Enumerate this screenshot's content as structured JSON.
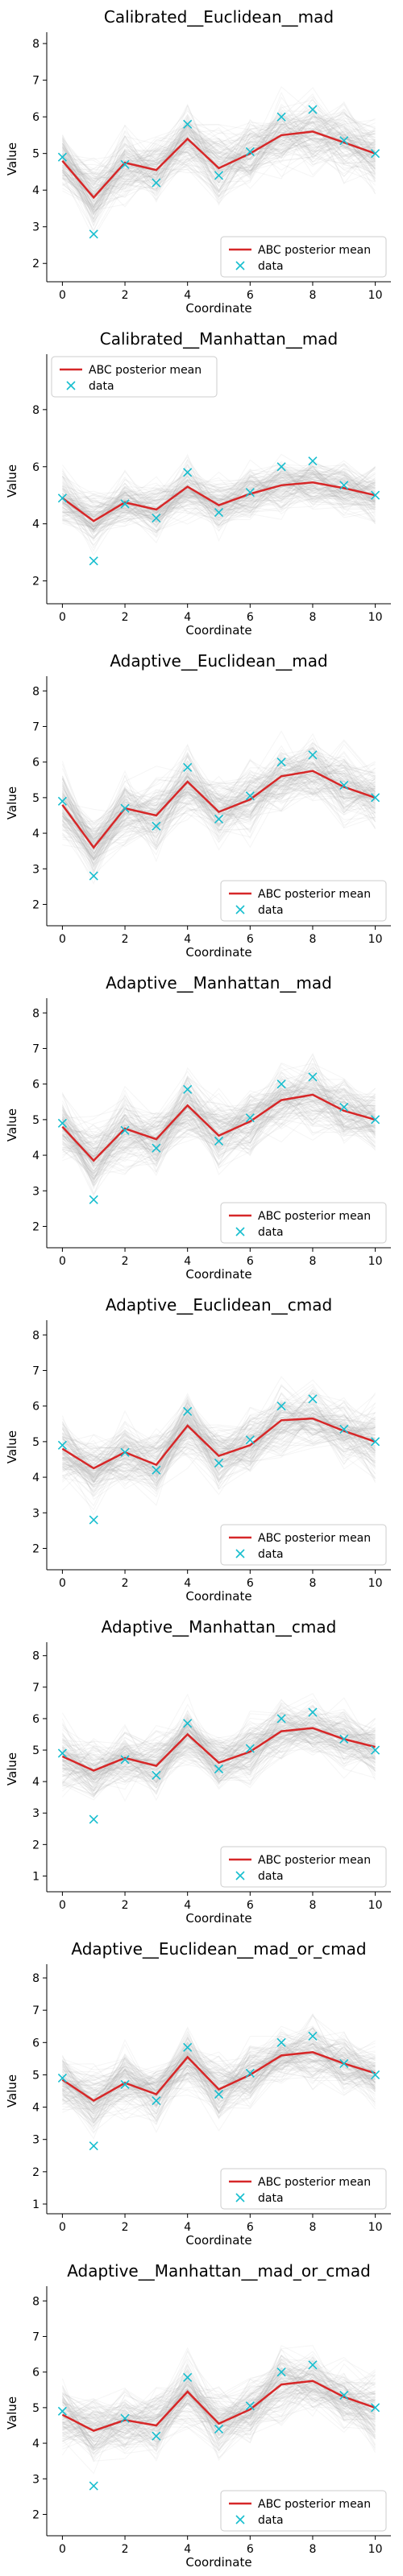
{
  "chart_data": [
    {
      "type": "line",
      "title": "Calibrated__Euclidean__mad",
      "xlabel": "Coordinate",
      "ylabel": "Value",
      "xlim": [
        0,
        10
      ],
      "ylim": [
        1.5,
        8.2
      ],
      "yticks": [
        2,
        3,
        4,
        5,
        6,
        7,
        8
      ],
      "xticks": [
        0,
        2,
        4,
        6,
        8,
        10
      ],
      "legend_position": "lower-right",
      "series": [
        {
          "name": "ABC posterior mean",
          "style": "line",
          "color": "#d62728",
          "x": [
            0,
            1,
            2,
            3,
            4,
            5,
            6,
            7,
            8,
            9,
            10
          ],
          "values": [
            4.8,
            3.8,
            4.75,
            4.55,
            5.4,
            4.6,
            5.0,
            5.5,
            5.6,
            5.3,
            5.0
          ]
        },
        {
          "name": "data",
          "style": "marker-x",
          "color": "#17becf",
          "x": [
            0,
            1,
            2,
            3,
            4,
            5,
            6,
            7,
            8,
            9,
            10
          ],
          "values": [
            4.9,
            2.8,
            4.7,
            4.2,
            5.8,
            4.4,
            5.05,
            6.0,
            6.2,
            5.35,
            5.0
          ]
        }
      ]
    },
    {
      "type": "line",
      "title": "Calibrated__Manhattan__mad",
      "xlabel": "Coordinate",
      "ylabel": "Value",
      "xlim": [
        0,
        10
      ],
      "ylim": [
        1.2,
        9.8
      ],
      "yticks": [
        2,
        4,
        6,
        8
      ],
      "xticks": [
        0,
        2,
        4,
        6,
        8,
        10
      ],
      "legend_position": "upper-left",
      "series": [
        {
          "name": "ABC posterior mean",
          "style": "line",
          "color": "#d62728",
          "x": [
            0,
            1,
            2,
            3,
            4,
            5,
            6,
            7,
            8,
            9,
            10
          ],
          "values": [
            4.9,
            4.1,
            4.75,
            4.5,
            5.3,
            4.65,
            5.05,
            5.35,
            5.45,
            5.25,
            5.0
          ]
        },
        {
          "name": "data",
          "style": "marker-x",
          "color": "#17becf",
          "x": [
            0,
            1,
            2,
            3,
            4,
            5,
            6,
            7,
            8,
            9,
            10
          ],
          "values": [
            4.9,
            2.7,
            4.7,
            4.2,
            5.8,
            4.4,
            5.1,
            6.0,
            6.2,
            5.35,
            5.0
          ]
        }
      ]
    },
    {
      "type": "line",
      "title": "Adaptive__Euclidean__mad",
      "xlabel": "Coordinate",
      "ylabel": "Value",
      "xlim": [
        0,
        10
      ],
      "ylim": [
        1.4,
        8.3
      ],
      "yticks": [
        2,
        3,
        4,
        5,
        6,
        7,
        8
      ],
      "xticks": [
        0,
        2,
        4,
        6,
        8,
        10
      ],
      "legend_position": "lower-right",
      "series": [
        {
          "name": "ABC posterior mean",
          "style": "line",
          "color": "#d62728",
          "x": [
            0,
            1,
            2,
            3,
            4,
            5,
            6,
            7,
            8,
            9,
            10
          ],
          "values": [
            4.8,
            3.6,
            4.7,
            4.5,
            5.45,
            4.6,
            4.95,
            5.6,
            5.75,
            5.3,
            5.0
          ]
        },
        {
          "name": "data",
          "style": "marker-x",
          "color": "#17becf",
          "x": [
            0,
            1,
            2,
            3,
            4,
            5,
            6,
            7,
            8,
            9,
            10
          ],
          "values": [
            4.9,
            2.8,
            4.7,
            4.2,
            5.85,
            4.4,
            5.05,
            6.0,
            6.2,
            5.35,
            5.0
          ]
        }
      ]
    },
    {
      "type": "line",
      "title": "Adaptive__Manhattan__mad",
      "xlabel": "Coordinate",
      "ylabel": "Value",
      "xlim": [
        0,
        10
      ],
      "ylim": [
        1.4,
        8.3
      ],
      "yticks": [
        2,
        3,
        4,
        5,
        6,
        7,
        8
      ],
      "xticks": [
        0,
        2,
        4,
        6,
        8,
        10
      ],
      "legend_position": "lower-right",
      "series": [
        {
          "name": "ABC posterior mean",
          "style": "line",
          "color": "#d62728",
          "x": [
            0,
            1,
            2,
            3,
            4,
            5,
            6,
            7,
            8,
            9,
            10
          ],
          "values": [
            4.8,
            3.85,
            4.75,
            4.45,
            5.4,
            4.55,
            4.95,
            5.55,
            5.7,
            5.25,
            5.0
          ]
        },
        {
          "name": "data",
          "style": "marker-x",
          "color": "#17becf",
          "x": [
            0,
            1,
            2,
            3,
            4,
            5,
            6,
            7,
            8,
            9,
            10
          ],
          "values": [
            4.9,
            2.75,
            4.7,
            4.2,
            5.85,
            4.4,
            5.05,
            6.0,
            6.2,
            5.35,
            5.0
          ]
        }
      ]
    },
    {
      "type": "line",
      "title": "Adaptive__Euclidean__cmad",
      "xlabel": "Coordinate",
      "ylabel": "Value",
      "xlim": [
        0,
        10
      ],
      "ylim": [
        1.4,
        8.3
      ],
      "yticks": [
        2,
        3,
        4,
        5,
        6,
        7,
        8
      ],
      "xticks": [
        0,
        2,
        4,
        6,
        8,
        10
      ],
      "legend_position": "lower-right",
      "series": [
        {
          "name": "ABC posterior mean",
          "style": "line",
          "color": "#d62728",
          "x": [
            0,
            1,
            2,
            3,
            4,
            5,
            6,
            7,
            8,
            9,
            10
          ],
          "values": [
            4.8,
            4.25,
            4.7,
            4.35,
            5.45,
            4.6,
            4.9,
            5.6,
            5.65,
            5.3,
            5.0
          ]
        },
        {
          "name": "data",
          "style": "marker-x",
          "color": "#17becf",
          "x": [
            0,
            1,
            2,
            3,
            4,
            5,
            6,
            7,
            8,
            9,
            10
          ],
          "values": [
            4.9,
            2.8,
            4.7,
            4.2,
            5.85,
            4.4,
            5.05,
            6.0,
            6.2,
            5.35,
            5.0
          ]
        }
      ]
    },
    {
      "type": "line",
      "title": "Adaptive__Manhattan__cmad",
      "xlabel": "Coordinate",
      "ylabel": "Value",
      "xlim": [
        0,
        10
      ],
      "ylim": [
        0.5,
        8.3
      ],
      "yticks": [
        1,
        2,
        3,
        4,
        5,
        6,
        7,
        8
      ],
      "xticks": [
        0,
        2,
        4,
        6,
        8,
        10
      ],
      "legend_position": "lower-right",
      "series": [
        {
          "name": "ABC posterior mean",
          "style": "line",
          "color": "#d62728",
          "x": [
            0,
            1,
            2,
            3,
            4,
            5,
            6,
            7,
            8,
            9,
            10
          ],
          "values": [
            4.8,
            4.35,
            4.75,
            4.5,
            5.5,
            4.6,
            4.95,
            5.6,
            5.7,
            5.35,
            5.1
          ]
        },
        {
          "name": "data",
          "style": "marker-x",
          "color": "#17becf",
          "x": [
            0,
            1,
            2,
            3,
            4,
            5,
            6,
            7,
            8,
            9,
            10
          ],
          "values": [
            4.9,
            2.8,
            4.7,
            4.2,
            5.85,
            4.4,
            5.05,
            6.0,
            6.2,
            5.35,
            5.0
          ]
        }
      ]
    },
    {
      "type": "line",
      "title": "Adaptive__Euclidean__mad_or_cmad",
      "xlabel": "Coordinate",
      "ylabel": "Value",
      "xlim": [
        0,
        10
      ],
      "ylim": [
        0.7,
        8.3
      ],
      "yticks": [
        1,
        2,
        3,
        4,
        5,
        6,
        7,
        8
      ],
      "xticks": [
        0,
        2,
        4,
        6,
        8,
        10
      ],
      "legend_position": "lower-right",
      "series": [
        {
          "name": "ABC posterior mean",
          "style": "line",
          "color": "#d62728",
          "x": [
            0,
            1,
            2,
            3,
            4,
            5,
            6,
            7,
            8,
            9,
            10
          ],
          "values": [
            4.85,
            4.2,
            4.75,
            4.4,
            5.55,
            4.55,
            5.0,
            5.6,
            5.7,
            5.35,
            5.05
          ]
        },
        {
          "name": "data",
          "style": "marker-x",
          "color": "#17becf",
          "x": [
            0,
            1,
            2,
            3,
            4,
            5,
            6,
            7,
            8,
            9,
            10
          ],
          "values": [
            4.9,
            2.8,
            4.7,
            4.2,
            5.85,
            4.4,
            5.05,
            6.0,
            6.2,
            5.35,
            5.0
          ]
        }
      ]
    },
    {
      "type": "line",
      "title": "Adaptive__Manhattan__mad_or_cmad",
      "xlabel": "Coordinate",
      "ylabel": "Value",
      "xlim": [
        0,
        10
      ],
      "ylim": [
        1.4,
        8.3
      ],
      "yticks": [
        2,
        3,
        4,
        5,
        6,
        7,
        8
      ],
      "xticks": [
        0,
        2,
        4,
        6,
        8,
        10
      ],
      "legend_position": "lower-right",
      "series": [
        {
          "name": "ABC posterior mean",
          "style": "line",
          "color": "#d62728",
          "x": [
            0,
            1,
            2,
            3,
            4,
            5,
            6,
            7,
            8,
            9,
            10
          ],
          "values": [
            4.8,
            4.35,
            4.65,
            4.5,
            5.45,
            4.55,
            4.95,
            5.65,
            5.75,
            5.3,
            5.0
          ]
        },
        {
          "name": "data",
          "style": "marker-x",
          "color": "#17becf",
          "x": [
            0,
            1,
            2,
            3,
            4,
            5,
            6,
            7,
            8,
            9,
            10
          ],
          "values": [
            4.9,
            2.8,
            4.7,
            4.2,
            5.85,
            4.4,
            5.05,
            6.0,
            6.2,
            5.35,
            5.0
          ]
        }
      ]
    }
  ],
  "colors": {
    "posterior_samples": "#b0b0b0",
    "axes": "#000000"
  }
}
